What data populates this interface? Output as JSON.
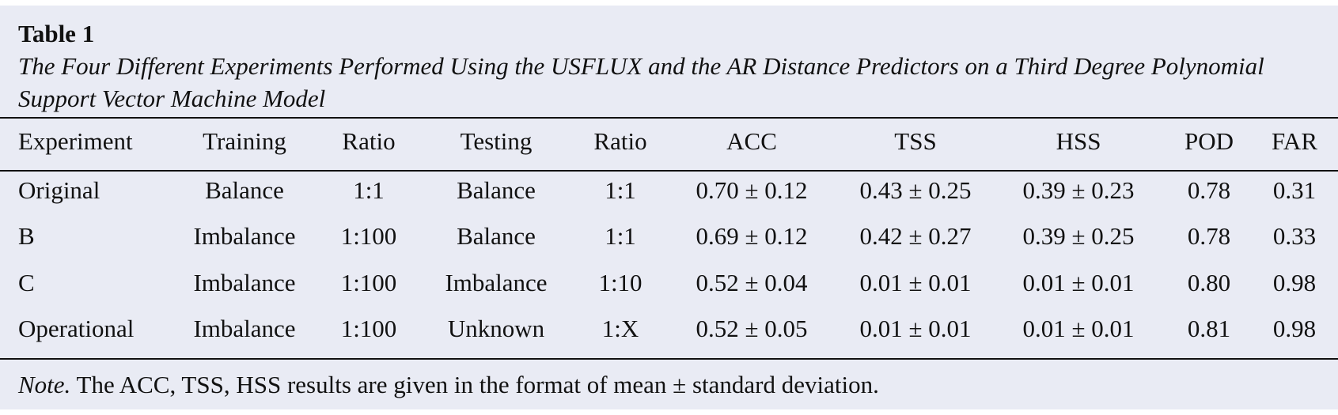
{
  "table": {
    "label": "Table 1",
    "caption": "The Four Different Experiments Performed Using the USFLUX and the AR Distance Predictors on a Third Degree Polynomial Support Vector Machine Model",
    "headers": [
      "Experiment",
      "Training",
      "Ratio",
      "Testing",
      "Ratio",
      "ACC",
      "TSS",
      "HSS",
      "POD",
      "FAR"
    ],
    "rows": [
      [
        "Original",
        "Balance",
        "1:1",
        "Balance",
        "1:1",
        "0.70 ± 0.12",
        "0.43 ± 0.25",
        "0.39 ± 0.23",
        "0.78",
        "0.31"
      ],
      [
        "B",
        "Imbalance",
        "1:100",
        "Balance",
        "1:1",
        "0.69 ± 0.12",
        "0.42 ± 0.27",
        "0.39 ± 0.25",
        "0.78",
        "0.33"
      ],
      [
        "C",
        "Imbalance",
        "1:100",
        "Imbalance",
        "1:10",
        "0.52 ± 0.04",
        "0.01 ± 0.01",
        "0.01 ± 0.01",
        "0.80",
        "0.98"
      ],
      [
        "Operational",
        "Imbalance",
        "1:100",
        "Unknown",
        "1:X",
        "0.52 ± 0.05",
        "0.01 ± 0.01",
        "0.01 ± 0.01",
        "0.81",
        "0.98"
      ]
    ],
    "note_label": "Note.",
    "note_text": " The ACC, TSS, HSS results are given in the format of mean ± standard deviation."
  }
}
